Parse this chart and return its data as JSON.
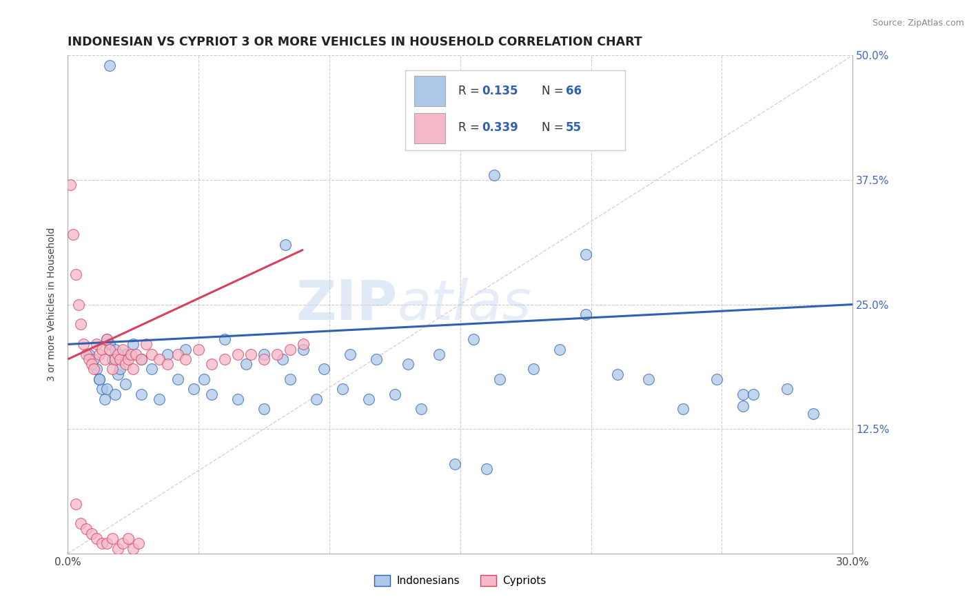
{
  "title": "INDONESIAN VS CYPRIOT 3 OR MORE VEHICLES IN HOUSEHOLD CORRELATION CHART",
  "source": "Source: ZipAtlas.com",
  "ylabel": "3 or more Vehicles in Household",
  "xmin": 0.0,
  "xmax": 0.3,
  "ymin": 0.0,
  "ymax": 0.5,
  "xticks": [
    0.0,
    0.05,
    0.1,
    0.15,
    0.2,
    0.25,
    0.3
  ],
  "yticks": [
    0.0,
    0.125,
    0.25,
    0.375,
    0.5
  ],
  "legend_r1": "0.135",
  "legend_n1": "66",
  "legend_r2": "0.339",
  "legend_n2": "55",
  "legend_label1": "Indonesians",
  "legend_label2": "Cypriots",
  "color_indonesian": "#adc8e8",
  "color_cypriot": "#f5b8c8",
  "color_line_indonesian": "#3060b0",
  "color_line_cypriot": "#d84060",
  "color_diagonal": "#e8c8cc",
  "watermark_zip": "ZIP",
  "watermark_atlas": "atlas",
  "indonesian_pts_x": [
    0.016,
    0.163,
    0.083,
    0.198,
    0.258,
    0.258,
    0.008,
    0.01,
    0.011,
    0.012,
    0.013,
    0.014,
    0.015,
    0.016,
    0.017,
    0.018,
    0.019,
    0.02,
    0.022,
    0.025,
    0.028,
    0.032,
    0.038,
    0.045,
    0.052,
    0.06,
    0.068,
    0.075,
    0.082,
    0.09,
    0.098,
    0.108,
    0.118,
    0.13,
    0.142,
    0.155,
    0.165,
    0.178,
    0.188,
    0.198,
    0.21,
    0.222,
    0.235,
    0.248,
    0.262,
    0.275,
    0.285,
    0.012,
    0.015,
    0.018,
    0.022,
    0.028,
    0.035,
    0.042,
    0.048,
    0.055,
    0.065,
    0.075,
    0.085,
    0.095,
    0.105,
    0.115,
    0.125,
    0.135,
    0.148,
    0.16
  ],
  "indonesian_pts_y": [
    0.49,
    0.38,
    0.31,
    0.3,
    0.16,
    0.148,
    0.2,
    0.195,
    0.185,
    0.175,
    0.165,
    0.155,
    0.215,
    0.21,
    0.195,
    0.205,
    0.18,
    0.185,
    0.2,
    0.21,
    0.195,
    0.185,
    0.2,
    0.205,
    0.175,
    0.215,
    0.19,
    0.2,
    0.195,
    0.205,
    0.185,
    0.2,
    0.195,
    0.19,
    0.2,
    0.215,
    0.175,
    0.185,
    0.205,
    0.24,
    0.18,
    0.175,
    0.145,
    0.175,
    0.16,
    0.165,
    0.14,
    0.175,
    0.165,
    0.16,
    0.17,
    0.16,
    0.155,
    0.175,
    0.165,
    0.16,
    0.155,
    0.145,
    0.175,
    0.155,
    0.165,
    0.155,
    0.16,
    0.145,
    0.09,
    0.085
  ],
  "cypriot_pts_x": [
    0.001,
    0.002,
    0.003,
    0.004,
    0.005,
    0.006,
    0.007,
    0.008,
    0.009,
    0.01,
    0.011,
    0.012,
    0.013,
    0.014,
    0.015,
    0.016,
    0.017,
    0.018,
    0.019,
    0.02,
    0.021,
    0.022,
    0.023,
    0.024,
    0.025,
    0.026,
    0.028,
    0.03,
    0.032,
    0.035,
    0.038,
    0.042,
    0.045,
    0.05,
    0.055,
    0.06,
    0.065,
    0.07,
    0.075,
    0.08,
    0.085,
    0.09,
    0.003,
    0.005,
    0.007,
    0.009,
    0.011,
    0.013,
    0.015,
    0.017,
    0.019,
    0.021,
    0.023,
    0.025,
    0.027
  ],
  "cypriot_pts_y": [
    0.37,
    0.32,
    0.28,
    0.25,
    0.23,
    0.21,
    0.2,
    0.195,
    0.19,
    0.185,
    0.21,
    0.2,
    0.205,
    0.195,
    0.215,
    0.205,
    0.185,
    0.195,
    0.2,
    0.195,
    0.205,
    0.19,
    0.195,
    0.2,
    0.185,
    0.2,
    0.195,
    0.21,
    0.2,
    0.195,
    0.19,
    0.2,
    0.195,
    0.205,
    0.19,
    0.195,
    0.2,
    0.2,
    0.195,
    0.2,
    0.205,
    0.21,
    0.05,
    0.03,
    0.025,
    0.02,
    0.015,
    0.01,
    0.01,
    0.015,
    0.005,
    0.01,
    0.015,
    0.005,
    0.01
  ]
}
